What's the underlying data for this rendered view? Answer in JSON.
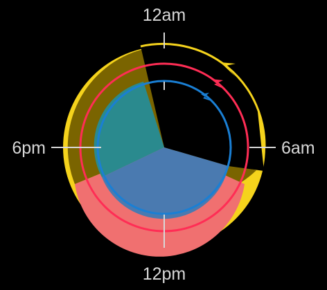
{
  "labels": {
    "top": "12am",
    "right": "6am",
    "bottom": "12pm",
    "left": "6pm"
  },
  "colors": {
    "background": "#000000",
    "outer_ring": "#f5d31c",
    "outer_ring_dark": "#7a6400",
    "red_ring": "#f07070",
    "red_line": "#ff2d55",
    "blue_line": "#1a7fd4",
    "teal_sector": "#2a8a8e",
    "blue_sector": "#4a7ab0",
    "ticks": "#d8d8d8"
  },
  "icons": {
    "outer_arrow": "arrowhead-clockwise-icon",
    "middle_arrow": "arrowhead-clockwise-icon",
    "inner_arrow": "arrowhead-clockwise-icon"
  }
}
